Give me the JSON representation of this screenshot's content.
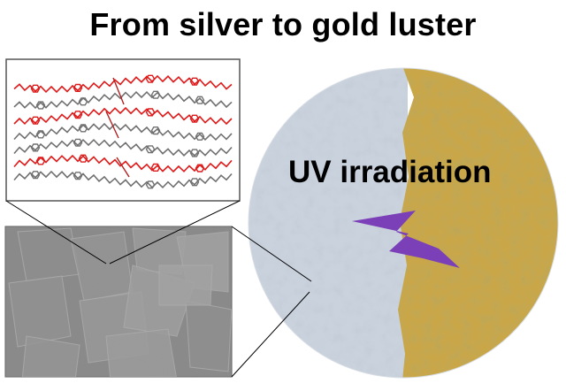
{
  "title": "From silver to gold luster",
  "circle_label": "UV irradiation",
  "colors": {
    "silver": "#c9d2dd",
    "gold": "#c9a74a",
    "arrow": "#7b3fb8",
    "chain_red": "#e01818",
    "chain_gray": "#707070",
    "sem_bg": "#8f8f8f"
  },
  "icons": {
    "lightning_arrow": "lightning-bolt-icon"
  }
}
